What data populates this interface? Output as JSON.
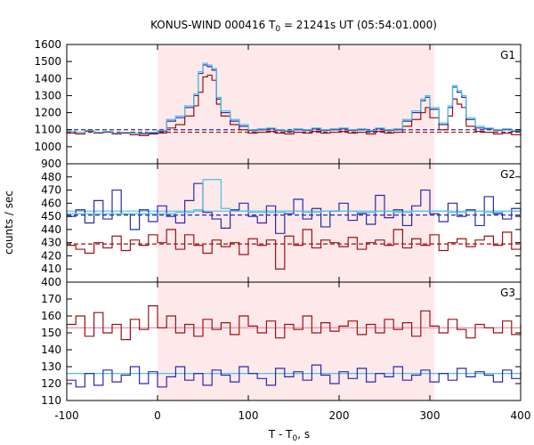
{
  "chart_data": {
    "type": "line",
    "title": {
      "main": "KONUS-WIND 000416 T",
      "sub": "0",
      "rest": " = 21241s UT (05:54:01.000)"
    },
    "xlabel": {
      "main": "T - T",
      "sub": "0",
      "rest": ", s"
    },
    "ylabel": "counts / sec",
    "xlim": [
      -100,
      400
    ],
    "x_ticks": [
      -100,
      0,
      100,
      200,
      300,
      400
    ],
    "shaded_interval": [
      0,
      305
    ],
    "colors": {
      "shade": "#fde9ea",
      "red": "#a01010",
      "blue": "#2a2aa8",
      "cyan": "#4ec0e6",
      "pink": "#f080a8"
    },
    "panels": [
      {
        "label": "G1",
        "ylim": [
          900,
          1600
        ],
        "y_ticks": [
          900,
          1000,
          1100,
          1200,
          1300,
          1400,
          1500,
          1600
        ],
        "background": {
          "red": 1085,
          "blue": 1100
        },
        "series": [
          {
            "color": "red",
            "x": [
              -100,
              -90,
              -80,
              -70,
              -60,
              -50,
              -40,
              -30,
              -20,
              -10,
              0,
              10,
              20,
              30,
              40,
              45,
              50,
              55,
              60,
              65,
              70,
              80,
              90,
              100,
              110,
              120,
              130,
              140,
              150,
              160,
              170,
              180,
              190,
              200,
              210,
              220,
              230,
              240,
              250,
              260,
              270,
              280,
              290,
              295,
              300,
              310,
              320,
              325,
              330,
              335,
              340,
              350,
              360,
              370,
              380,
              390,
              400
            ],
            "y": [
              1080,
              1075,
              1090,
              1080,
              1085,
              1075,
              1080,
              1070,
              1065,
              1075,
              1080,
              1110,
              1130,
              1180,
              1240,
              1320,
              1410,
              1420,
              1390,
              1250,
              1180,
              1130,
              1100,
              1080,
              1085,
              1090,
              1080,
              1075,
              1085,
              1080,
              1090,
              1080,
              1085,
              1090,
              1080,
              1085,
              1075,
              1090,
              1080,
              1085,
              1120,
              1160,
              1200,
              1230,
              1170,
              1100,
              1180,
              1280,
              1250,
              1230,
              1120,
              1090,
              1085,
              1075,
              1080,
              1070,
              1080
            ]
          },
          {
            "color": "blue",
            "x": [
              -100,
              -90,
              -80,
              -70,
              -60,
              -50,
              -40,
              -30,
              -20,
              -10,
              0,
              10,
              20,
              30,
              40,
              45,
              50,
              55,
              60,
              65,
              70,
              80,
              90,
              100,
              110,
              120,
              130,
              140,
              150,
              160,
              170,
              180,
              190,
              200,
              210,
              220,
              230,
              240,
              250,
              260,
              270,
              280,
              290,
              295,
              300,
              310,
              320,
              325,
              330,
              335,
              340,
              350,
              360,
              370,
              380,
              390,
              400
            ],
            "y": [
              1090,
              1085,
              1095,
              1085,
              1090,
              1080,
              1085,
              1080,
              1075,
              1080,
              1090,
              1150,
              1170,
              1230,
              1300,
              1430,
              1480,
              1470,
              1450,
              1280,
              1200,
              1150,
              1120,
              1095,
              1100,
              1105,
              1095,
              1090,
              1100,
              1095,
              1105,
              1095,
              1100,
              1105,
              1095,
              1100,
              1090,
              1105,
              1095,
              1100,
              1150,
              1200,
              1270,
              1290,
              1220,
              1130,
              1230,
              1350,
              1320,
              1290,
              1160,
              1110,
              1105,
              1095,
              1100,
              1090,
              1100
            ]
          },
          {
            "color": "cyan",
            "x": [
              -100,
              -90,
              -80,
              -70,
              -60,
              -50,
              -40,
              -30,
              -20,
              -10,
              0,
              10,
              20,
              30,
              40,
              45,
              50,
              55,
              60,
              65,
              70,
              80,
              90,
              100,
              110,
              120,
              130,
              140,
              150,
              160,
              170,
              180,
              190,
              200,
              210,
              220,
              230,
              240,
              250,
              260,
              270,
              280,
              290,
              295,
              300,
              310,
              320,
              325,
              330,
              335,
              340,
              350,
              360,
              370,
              380,
              390,
              400
            ],
            "y": [
              1090,
              1085,
              1095,
              1085,
              1090,
              1080,
              1085,
              1080,
              1080,
              1085,
              1095,
              1160,
              1180,
              1240,
              1310,
              1440,
              1490,
              1480,
              1460,
              1290,
              1210,
              1160,
              1130,
              1100,
              1105,
              1110,
              1100,
              1095,
              1105,
              1100,
              1110,
              1100,
              1105,
              1110,
              1100,
              1105,
              1095,
              1110,
              1100,
              1105,
              1160,
              1210,
              1280,
              1300,
              1230,
              1140,
              1240,
              1360,
              1330,
              1300,
              1170,
              1120,
              1110,
              1100,
              1105,
              1095,
              1105
            ]
          }
        ]
      },
      {
        "label": "G2",
        "ylim": [
          400,
          490
        ],
        "y_ticks": [
          400,
          410,
          420,
          430,
          440,
          450,
          460,
          470,
          480
        ],
        "background": {
          "red": 429,
          "blue": 451,
          "cyan": 454
        },
        "series": [
          {
            "color": "red",
            "x": [
              -100,
              -90,
              -80,
              -70,
              -60,
              -50,
              -40,
              -30,
              -20,
              -10,
              0,
              10,
              20,
              30,
              40,
              50,
              60,
              70,
              80,
              90,
              100,
              110,
              120,
              130,
              140,
              150,
              160,
              170,
              180,
              190,
              200,
              210,
              220,
              230,
              240,
              250,
              260,
              270,
              280,
              290,
              300,
              310,
              320,
              330,
              340,
              350,
              360,
              370,
              380,
              390,
              400
            ],
            "y": [
              428,
              425,
              422,
              430,
              426,
              435,
              424,
              432,
              428,
              436,
              430,
              440,
              425,
              436,
              428,
              422,
              432,
              427,
              430,
              421,
              433,
              428,
              432,
              410,
              435,
              428,
              440,
              426,
              432,
              430,
              427,
              434,
              425,
              430,
              432,
              428,
              440,
              426,
              433,
              428,
              436,
              424,
              430,
              433,
              427,
              432,
              435,
              428,
              438,
              425,
              430
            ]
          },
          {
            "color": "blue",
            "x": [
              -100,
              -90,
              -80,
              -70,
              -60,
              -50,
              -40,
              -30,
              -20,
              -10,
              0,
              10,
              20,
              30,
              40,
              50,
              60,
              70,
              80,
              90,
              100,
              110,
              120,
              130,
              140,
              150,
              160,
              170,
              180,
              190,
              200,
              210,
              220,
              230,
              240,
              250,
              260,
              270,
              280,
              290,
              300,
              310,
              320,
              330,
              340,
              350,
              360,
              370,
              380,
              390,
              400
            ],
            "y": [
              450,
              455,
              445,
              462,
              448,
              470,
              452,
              440,
              455,
              446,
              458,
              450,
              445,
              462,
              475,
              453,
              448,
              441,
              455,
              460,
              450,
              445,
              458,
              437,
              452,
              463,
              448,
              456,
              442,
              454,
              460,
              447,
              452,
              444,
              466,
              449,
              455,
              443,
              458,
              470,
              452,
              446,
              460,
              450,
              455,
              443,
              465,
              452,
              448,
              456,
              450
            ]
          },
          {
            "color": "cyan",
            "x": [
              -100,
              -80,
              -60,
              -40,
              -20,
              0,
              20,
              40,
              50,
              60,
              70,
              80,
              100,
              120,
              140,
              160,
              180,
              200,
              220,
              240,
              260,
              280,
              300,
              320,
              340,
              360,
              380,
              400
            ],
            "y": [
              452,
              452,
              452,
              452,
              452,
              452,
              453,
              455,
              478,
              478,
              456,
              454,
              453,
              453,
              454,
              453,
              454,
              454,
              453,
              454,
              453,
              454,
              454,
              453,
              454,
              453,
              454,
              454
            ]
          }
        ]
      },
      {
        "label": "G3",
        "ylim": [
          110,
          180
        ],
        "y_ticks": [
          110,
          120,
          130,
          140,
          150,
          160,
          170
        ],
        "background": {
          "red": 153,
          "blue": 126
        },
        "series": [
          {
            "color": "red",
            "x": [
              -100,
              -90,
              -80,
              -70,
              -60,
              -50,
              -40,
              -30,
              -20,
              -10,
              0,
              10,
              20,
              30,
              40,
              50,
              60,
              70,
              80,
              90,
              100,
              110,
              120,
              130,
              140,
              150,
              160,
              170,
              180,
              190,
              200,
              210,
              220,
              230,
              240,
              250,
              260,
              270,
              280,
              290,
              300,
              310,
              320,
              330,
              340,
              350,
              360,
              370,
              380,
              390,
              400
            ],
            "y": [
              155,
              160,
              148,
              162,
              150,
              155,
              146,
              158,
              152,
              166,
              153,
              160,
              150,
              155,
              148,
              158,
              152,
              156,
              149,
              160,
              154,
              150,
              157,
              147,
              155,
              152,
              160,
              150,
              156,
              151,
              154,
              157,
              149,
              155,
              150,
              158,
              152,
              156,
              148,
              163,
              154,
              150,
              158,
              152,
              147,
              155,
              153,
              150,
              157,
              149,
              155
            ]
          },
          {
            "color": "blue",
            "x": [
              -100,
              -90,
              -80,
              -70,
              -60,
              -50,
              -40,
              -30,
              -20,
              -10,
              0,
              10,
              20,
              30,
              40,
              50,
              60,
              70,
              80,
              90,
              100,
              110,
              120,
              130,
              140,
              150,
              160,
              170,
              180,
              190,
              200,
              210,
              220,
              230,
              240,
              250,
              260,
              270,
              280,
              290,
              300,
              310,
              320,
              330,
              340,
              350,
              360,
              370,
              380,
              390,
              400
            ],
            "y": [
              122,
              118,
              126,
              119,
              128,
              121,
              125,
              130,
              120,
              127,
              118,
              124,
              130,
              122,
              126,
              119,
              128,
              125,
              121,
              130,
              126,
              123,
              119,
              129,
              124,
              127,
              122,
              131,
              125,
              120,
              127,
              123,
              129,
              121,
              126,
              124,
              130,
              122,
              125,
              128,
              121,
              126,
              122,
              129,
              124,
              127,
              125,
              121,
              128,
              123,
              127
            ]
          }
        ]
      }
    ]
  }
}
